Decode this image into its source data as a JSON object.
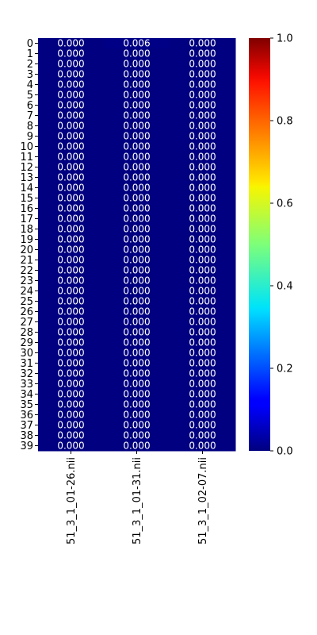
{
  "chart_data": {
    "type": "heatmap",
    "title": "",
    "xlabel": "",
    "ylabel": "",
    "columns": [
      "51_3_1_01-26.nii",
      "51_3_1_01-31.nii",
      "51_3_1_02-07.nii"
    ],
    "rows": [
      "0",
      "1",
      "2",
      "3",
      "4",
      "5",
      "6",
      "7",
      "8",
      "9",
      "10",
      "11",
      "12",
      "13",
      "14",
      "15",
      "16",
      "17",
      "18",
      "19",
      "20",
      "21",
      "22",
      "23",
      "24",
      "25",
      "26",
      "27",
      "28",
      "29",
      "30",
      "31",
      "32",
      "33",
      "34",
      "35",
      "36",
      "37",
      "38",
      "39"
    ],
    "values": [
      [
        0.0,
        0.006,
        0.0
      ],
      [
        0.0,
        0.0,
        0.0
      ],
      [
        0.0,
        0.0,
        0.0
      ],
      [
        0.0,
        0.0,
        0.0
      ],
      [
        0.0,
        0.0,
        0.0
      ],
      [
        0.0,
        0.0,
        0.0
      ],
      [
        0.0,
        0.0,
        0.0
      ],
      [
        0.0,
        0.0,
        0.0
      ],
      [
        0.0,
        0.0,
        0.0
      ],
      [
        0.0,
        0.0,
        0.0
      ],
      [
        0.0,
        0.0,
        0.0
      ],
      [
        0.0,
        0.0,
        0.0
      ],
      [
        0.0,
        0.0,
        0.0
      ],
      [
        0.0,
        0.0,
        0.0
      ],
      [
        0.0,
        0.0,
        0.0
      ],
      [
        0.0,
        0.0,
        0.0
      ],
      [
        0.0,
        0.0,
        0.0
      ],
      [
        0.0,
        0.0,
        0.0
      ],
      [
        0.0,
        0.0,
        0.0
      ],
      [
        0.0,
        0.0,
        0.0
      ],
      [
        0.0,
        0.0,
        0.0
      ],
      [
        0.0,
        0.0,
        0.0
      ],
      [
        0.0,
        0.0,
        0.0
      ],
      [
        0.0,
        0.0,
        0.0
      ],
      [
        0.0,
        0.0,
        0.0
      ],
      [
        0.0,
        0.0,
        0.0
      ],
      [
        0.0,
        0.0,
        0.0
      ],
      [
        0.0,
        0.0,
        0.0
      ],
      [
        0.0,
        0.0,
        0.0
      ],
      [
        0.0,
        0.0,
        0.0
      ],
      [
        0.0,
        0.0,
        0.0
      ],
      [
        0.0,
        0.0,
        0.0
      ],
      [
        0.0,
        0.0,
        0.0
      ],
      [
        0.0,
        0.0,
        0.0
      ],
      [
        0.0,
        0.0,
        0.0
      ],
      [
        0.0,
        0.0,
        0.0
      ],
      [
        0.0,
        0.0,
        0.0
      ],
      [
        0.0,
        0.0,
        0.0
      ],
      [
        0.0,
        0.0,
        0.0
      ],
      [
        0.0,
        0.0,
        0.0
      ]
    ],
    "value_format": "0.000",
    "colormap": "jet",
    "vmin": 0.0,
    "vmax": 1.0,
    "colorbar_ticks": [
      "0.0",
      "0.2",
      "0.4",
      "0.6",
      "0.8",
      "1.0"
    ],
    "cell_text_color": "#ffffff",
    "grid": false,
    "legend": "colorbar-right"
  }
}
